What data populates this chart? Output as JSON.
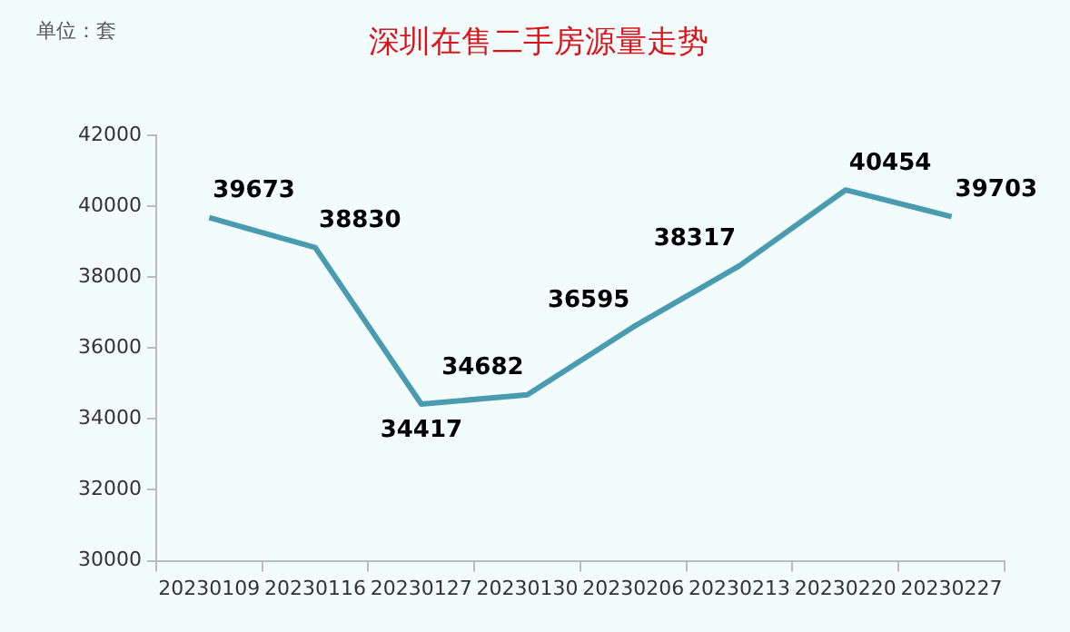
{
  "chart_data": {
    "type": "line",
    "title": "深圳在售二手房源量走势",
    "annotations": [
      "单位：套"
    ],
    "categories": [
      "20230109",
      "20230116",
      "20230127",
      "20230130",
      "20230206",
      "20230213",
      "20230220",
      "20230227"
    ],
    "series": [
      {
        "color": "#4a9bb0",
        "values": [
          39673,
          38830,
          34417,
          34682,
          36595,
          38317,
          40454,
          39703
        ]
      }
    ],
    "ylim": [
      30000,
      42000
    ],
    "yticks": [
      30000,
      32000,
      34000,
      36000,
      38000,
      40000,
      42000
    ],
    "grid": false,
    "legend": false,
    "marker": "none",
    "line_style": "solid",
    "data_labels": true
  }
}
